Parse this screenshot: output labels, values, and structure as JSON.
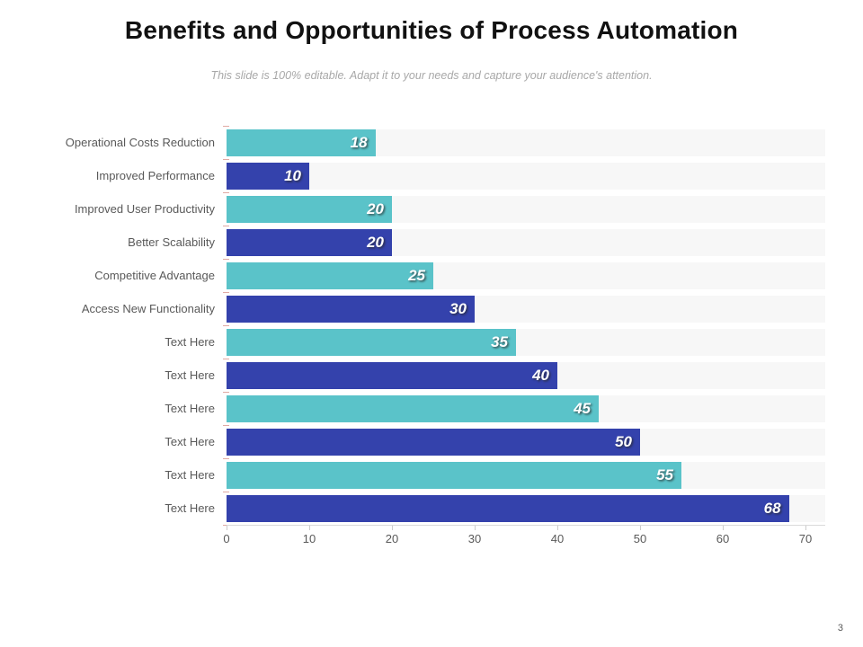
{
  "page": {
    "title": "Benefits and Opportunities of Process Automation",
    "subtitle": "This slide is 100% editable. Adapt it to your needs and capture your audience's attention.",
    "page_number": "3"
  },
  "chart_data": {
    "type": "bar",
    "orientation": "horizontal",
    "title": "",
    "categories": [
      "Operational Costs Reduction",
      "Improved Performance",
      "Improved User Productivity",
      "Better Scalability",
      "Competitive Advantage",
      "Access New Functionality",
      "Text Here",
      "Text Here",
      "Text Here",
      "Text Here",
      "Text Here",
      "Text Here"
    ],
    "values": [
      18,
      10,
      20,
      20,
      25,
      30,
      35,
      40,
      45,
      50,
      55,
      68
    ],
    "value_labels": [
      "18",
      "10",
      "20",
      "20",
      "25",
      "30",
      "35",
      "40",
      "45",
      "50",
      "55",
      "68"
    ],
    "bar_colors": [
      "#5AC3C9",
      "#3442AC",
      "#5AC3C9",
      "#3442AC",
      "#5AC3C9",
      "#3442AC",
      "#5AC3C9",
      "#3442AC",
      "#5AC3C9",
      "#3442AC",
      "#5AC3C9",
      "#3442AC"
    ],
    "palette": {
      "teal": "#5AC3C9",
      "blue": "#3442AC"
    },
    "xlim": [
      0,
      70
    ],
    "x_ticks": [
      "0",
      "10",
      "20",
      "30",
      "40",
      "50",
      "60",
      "70"
    ],
    "grid": false,
    "legend": null,
    "row_band_color": "#f7f7f7",
    "axis_line_color": "#d9d9d9",
    "tick_label_color": "#595959",
    "category_label_color": "#595959",
    "value_label_color": "#ffffff"
  }
}
